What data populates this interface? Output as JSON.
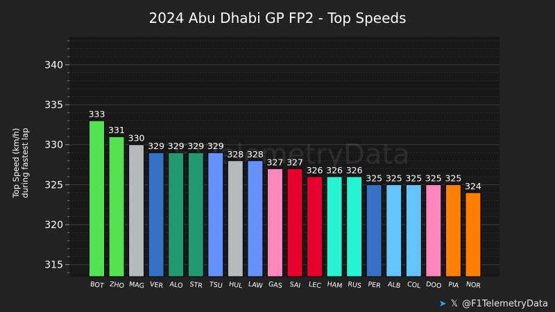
{
  "chart_data": {
    "type": "bar",
    "title": "2024 Abu Dhabi GP FP2 - Top Speeds",
    "ylabel": [
      "Top Speed (km/h)",
      "during fastest lap"
    ],
    "xlabel": "",
    "ylim": [
      313.5,
      343.5
    ],
    "yticks": [
      315,
      320,
      325,
      330,
      335,
      340
    ],
    "grid": true,
    "watermark": "F1TelemetryData",
    "categories": [
      "BOT",
      "ZHO",
      "MAG",
      "VER",
      "ALO",
      "STR",
      "TSU",
      "HUL",
      "LAW",
      "GAS",
      "SAI",
      "LEC",
      "HAM",
      "RUS",
      "PER",
      "ALB",
      "COL",
      "DOO",
      "PIA",
      "NOR"
    ],
    "values": [
      333,
      331,
      330,
      329,
      329,
      329,
      329,
      328,
      328,
      327,
      327,
      326,
      326,
      326,
      325,
      325,
      325,
      325,
      325,
      324
    ],
    "colors": [
      "#52e252",
      "#52e252",
      "#b6babd",
      "#3671c6",
      "#229971",
      "#229971",
      "#6692ff",
      "#b6babd",
      "#6692ff",
      "#ff87bc",
      "#e8002d",
      "#e8002d",
      "#27f4d2",
      "#27f4d2",
      "#3671c6",
      "#64c4ff",
      "#64c4ff",
      "#ff87bc",
      "#ff8000",
      "#ff8000"
    ]
  },
  "credit": {
    "telegram_icon": "telegram-icon",
    "x_icon": "x-logo-icon",
    "handle": "@F1TelemetryData"
  }
}
